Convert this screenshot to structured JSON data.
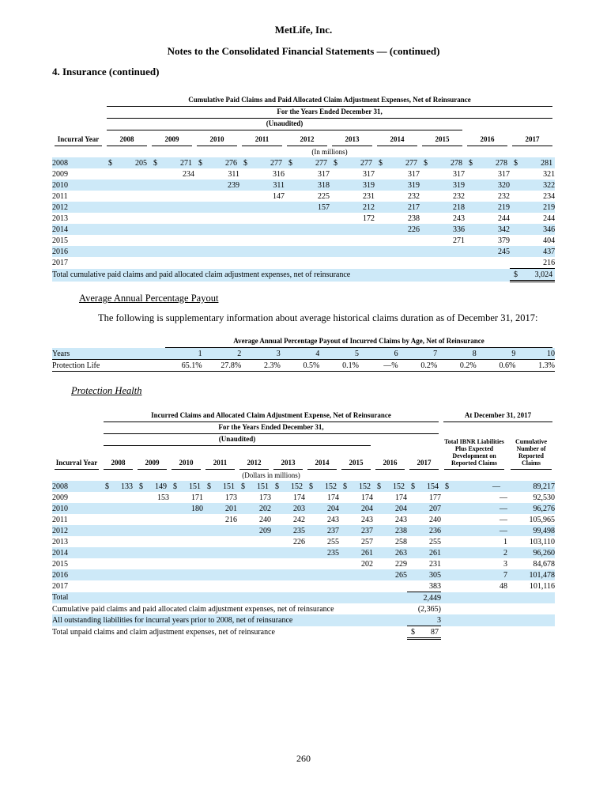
{
  "page": {
    "company": "MetLife, Inc.",
    "title": "Notes to the Consolidated Financial Statements — (continued)",
    "section": "4. Insurance (continued)",
    "page_number": "260"
  },
  "colors": {
    "stripe": "#cde9f8",
    "line": "#000000"
  },
  "table1": {
    "title": "Cumulative Paid Claims and Paid Allocated Claim Adjustment Expenses, Net of Reinsurance",
    "subtitle": "For the Years Ended December 31,",
    "unaudited": "(Unaudited)",
    "units": "(In millions)",
    "row_header": "Incurral Year",
    "years": [
      "2008",
      "2009",
      "2010",
      "2011",
      "2012",
      "2013",
      "2014",
      "2015",
      "2016",
      "2017"
    ],
    "rows": [
      {
        "year": "2008",
        "dollar": true,
        "values": [
          "205",
          "271",
          "276",
          "277",
          "277",
          "277",
          "277",
          "278",
          "278",
          "281"
        ]
      },
      {
        "year": "2009",
        "values": [
          null,
          "234",
          "311",
          "316",
          "317",
          "317",
          "317",
          "317",
          "317",
          "321"
        ]
      },
      {
        "year": "2010",
        "values": [
          null,
          null,
          "239",
          "311",
          "318",
          "319",
          "319",
          "319",
          "320",
          "322"
        ]
      },
      {
        "year": "2011",
        "values": [
          null,
          null,
          null,
          "147",
          "225",
          "231",
          "232",
          "232",
          "232",
          "234"
        ]
      },
      {
        "year": "2012",
        "values": [
          null,
          null,
          null,
          null,
          "157",
          "212",
          "217",
          "218",
          "219",
          "219"
        ]
      },
      {
        "year": "2013",
        "values": [
          null,
          null,
          null,
          null,
          null,
          "172",
          "238",
          "243",
          "244",
          "244"
        ]
      },
      {
        "year": "2014",
        "values": [
          null,
          null,
          null,
          null,
          null,
          null,
          "226",
          "336",
          "342",
          "346"
        ]
      },
      {
        "year": "2015",
        "values": [
          null,
          null,
          null,
          null,
          null,
          null,
          null,
          "271",
          "379",
          "404"
        ]
      },
      {
        "year": "2016",
        "values": [
          null,
          null,
          null,
          null,
          null,
          null,
          null,
          null,
          "245",
          "437"
        ]
      },
      {
        "year": "2017",
        "values": [
          null,
          null,
          null,
          null,
          null,
          null,
          null,
          null,
          null,
          "216"
        ]
      }
    ],
    "total_label": "Total cumulative paid claims and paid allocated claim adjustment expenses, net of reinsurance",
    "total_value": "3,024"
  },
  "avg_section": {
    "heading": "Average Annual Percentage Payout",
    "paragraph": "The following is supplementary information about average historical claims duration as of December 31, 2017:",
    "table": {
      "title": "Average Annual Percentage Payout of Incurred Claims by Age, Net of Reinsurance",
      "row_header": "Years",
      "ages": [
        "1",
        "2",
        "3",
        "4",
        "5",
        "6",
        "7",
        "8",
        "9",
        "10"
      ],
      "series_label": "Protection Life",
      "values": [
        "65.1%",
        "27.8%",
        "2.3%",
        "0.5%",
        "0.1%",
        "—%",
        "0.2%",
        "0.2%",
        "0.6%",
        "1.3%"
      ]
    }
  },
  "health_section": {
    "heading": "Protection Health",
    "table2": {
      "title": "Incurred Claims and Allocated Claim Adjustment Expense, Net of Reinsurance",
      "right_title": "At December 31, 2017",
      "subtitle": "For the Years Ended December 31,",
      "unaudited": "(Unaudited)",
      "units": "(Dollars in millions)",
      "row_header": "Incurral Year",
      "ibnr_header": "Total IBNR Liabilities Plus Expected Development on Reported Claims",
      "count_header": "Cumulative Number of Reported Claims",
      "years": [
        "2008",
        "2009",
        "2010",
        "2011",
        "2012",
        "2013",
        "2014",
        "2015",
        "2016",
        "2017"
      ],
      "rows": [
        {
          "year": "2008",
          "dollar": true,
          "ibnr_dollar": true,
          "values": [
            "133",
            "149",
            "151",
            "151",
            "151",
            "152",
            "152",
            "152",
            "152",
            "154"
          ],
          "ibnr": "—",
          "count": "89,217"
        },
        {
          "year": "2009",
          "values": [
            null,
            "153",
            "171",
            "173",
            "173",
            "174",
            "174",
            "174",
            "174",
            "177"
          ],
          "ibnr": "—",
          "count": "92,530"
        },
        {
          "year": "2010",
          "values": [
            null,
            null,
            "180",
            "201",
            "202",
            "203",
            "204",
            "204",
            "204",
            "207"
          ],
          "ibnr": "—",
          "count": "96,276"
        },
        {
          "year": "2011",
          "values": [
            null,
            null,
            null,
            "216",
            "240",
            "242",
            "243",
            "243",
            "243",
            "240"
          ],
          "ibnr": "—",
          "count": "105,965"
        },
        {
          "year": "2012",
          "values": [
            null,
            null,
            null,
            null,
            "209",
            "235",
            "237",
            "237",
            "238",
            "236"
          ],
          "ibnr": "—",
          "count": "99,498"
        },
        {
          "year": "2013",
          "values": [
            null,
            null,
            null,
            null,
            null,
            "226",
            "255",
            "257",
            "258",
            "255"
          ],
          "ibnr": "1",
          "count": "103,110"
        },
        {
          "year": "2014",
          "values": [
            null,
            null,
            null,
            null,
            null,
            null,
            "235",
            "261",
            "263",
            "261"
          ],
          "ibnr": "2",
          "count": "96,260"
        },
        {
          "year": "2015",
          "values": [
            null,
            null,
            null,
            null,
            null,
            null,
            null,
            "202",
            "229",
            "231"
          ],
          "ibnr": "3",
          "count": "84,678"
        },
        {
          "year": "2016",
          "values": [
            null,
            null,
            null,
            null,
            null,
            null,
            null,
            null,
            "265",
            "305"
          ],
          "ibnr": "7",
          "count": "101,478"
        },
        {
          "year": "2017",
          "values": [
            null,
            null,
            null,
            null,
            null,
            null,
            null,
            null,
            null,
            "383"
          ],
          "ibnr": "48",
          "count": "101,116"
        }
      ],
      "summary_rows": [
        {
          "label": "Total",
          "value": "2,449",
          "indent": true,
          "stripe": true,
          "border": "top"
        },
        {
          "label": "Cumulative paid claims and paid allocated claim adjustment expenses, net of reinsurance",
          "value": "(2,365)",
          "stripe": false
        },
        {
          "label": "All outstanding liabilities for incurral years prior to 2008, net of reinsurance",
          "value": "3",
          "stripe": true
        },
        {
          "label": "Total unpaid claims and claim adjustment expenses, net of reinsurance",
          "value": "87",
          "dollar": true,
          "indent": true,
          "stripe": false,
          "border": "both"
        }
      ]
    }
  }
}
